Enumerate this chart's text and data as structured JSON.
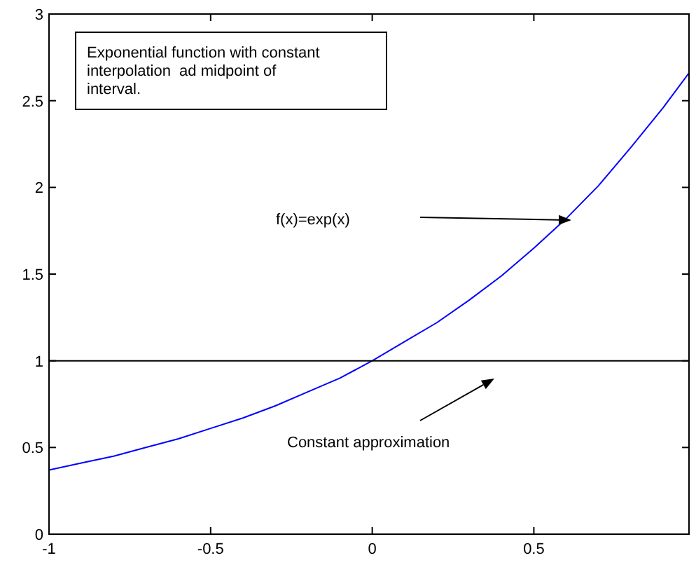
{
  "chart_data": {
    "type": "line",
    "xlim": [
      -1,
      0.98
    ],
    "ylim": [
      0,
      3
    ],
    "xticks": [
      -1,
      -0.5,
      0,
      0.5
    ],
    "yticks": [
      0,
      0.5,
      1,
      1.5,
      2,
      2.5,
      3
    ],
    "grid": false,
    "marker": "none",
    "line_style": "solid",
    "series": [
      {
        "color": "#0000ff",
        "x": [
          -1,
          -0.9,
          -0.8,
          -0.7,
          -0.6,
          -0.5,
          -0.4,
          -0.3,
          -0.2,
          -0.1,
          0,
          0.1,
          0.2,
          0.3,
          0.4,
          0.5,
          0.6,
          0.7,
          0.8,
          0.9,
          0.98
        ],
        "values": [
          0.37,
          0.41,
          0.45,
          0.5,
          0.55,
          0.61,
          0.67,
          0.74,
          0.82,
          0.9,
          1.0,
          1.11,
          1.22,
          1.35,
          1.49,
          1.65,
          1.82,
          2.01,
          2.23,
          2.46,
          2.66
        ]
      },
      {
        "color": "#000000",
        "x": [
          -1,
          0.98
        ],
        "values": [
          1,
          1
        ]
      }
    ],
    "annotations": [
      "Exponential function with constant interpolation  ad midpoint of interval.",
      "f(x)=exp(x)",
      "Constant approximation"
    ]
  }
}
